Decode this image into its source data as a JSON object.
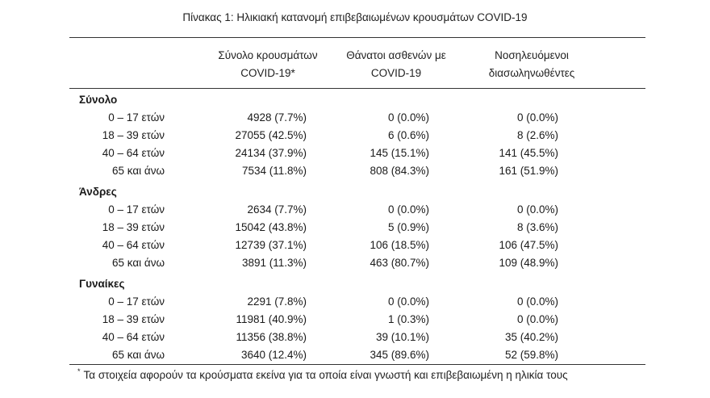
{
  "caption": "Πίνακας 1: Ηλικιακή κατανομή επιβεβαιωμένων κρουσμάτων COVID-19",
  "headers": {
    "col1_line1": "Σύνολο κρουσμάτων",
    "col1_line2": "COVID-19*",
    "col2_line1": "Θάνατοι ασθενών με",
    "col2_line2": "COVID-19",
    "col3_line1": "Νοσηλευόμενοι",
    "col3_line2": "διασωληνωθέντες"
  },
  "groups": [
    {
      "title": "Σύνολο",
      "rows": [
        {
          "age": "0 – 17 ετών",
          "cases": "4928 (7.7%)",
          "deaths": "0 (0.0%)",
          "intubated": "0 (0.0%)"
        },
        {
          "age": "18 – 39 ετών",
          "cases": "27055 (42.5%)",
          "deaths": "6 (0.6%)",
          "intubated": "8 (2.6%)"
        },
        {
          "age": "40 – 64 ετών",
          "cases": "24134 (37.9%)",
          "deaths": "145 (15.1%)",
          "intubated": "141 (45.5%)"
        },
        {
          "age": "65 και άνω",
          "cases": "7534 (11.8%)",
          "deaths": "808 (84.3%)",
          "intubated": "161 (51.9%)"
        }
      ]
    },
    {
      "title": "Άνδρες",
      "rows": [
        {
          "age": "0 – 17 ετών",
          "cases": "2634 (7.7%)",
          "deaths": "0 (0.0%)",
          "intubated": "0 (0.0%)"
        },
        {
          "age": "18 – 39 ετών",
          "cases": "15042 (43.8%)",
          "deaths": "5 (0.9%)",
          "intubated": "8 (3.6%)"
        },
        {
          "age": "40 – 64 ετών",
          "cases": "12739 (37.1%)",
          "deaths": "106 (18.5%)",
          "intubated": "106 (47.5%)"
        },
        {
          "age": "65 και άνω",
          "cases": "3891 (11.3%)",
          "deaths": "463 (80.7%)",
          "intubated": "109 (48.9%)"
        }
      ]
    },
    {
      "title": "Γυναίκες",
      "rows": [
        {
          "age": "0 – 17 ετών",
          "cases": "2291 (7.8%)",
          "deaths": "0 (0.0%)",
          "intubated": "0 (0.0%)"
        },
        {
          "age": "18 – 39 ετών",
          "cases": "11981 (40.9%)",
          "deaths": "1 (0.3%)",
          "intubated": "0 (0.0%)"
        },
        {
          "age": "40 – 64 ετών",
          "cases": "11356 (38.8%)",
          "deaths": "39 (10.1%)",
          "intubated": "35 (40.2%)"
        },
        {
          "age": "65 και άνω",
          "cases": "3640 (12.4%)",
          "deaths": "345 (89.6%)",
          "intubated": "52 (59.8%)"
        }
      ]
    }
  ],
  "footnote": {
    "marker": "*",
    "text": "Τα στοιχεία αφορούν τα κρούσματα εκείνα για τα οποία είναι γνωστή και επιβεβαιωμένη η ηλικία τους"
  }
}
